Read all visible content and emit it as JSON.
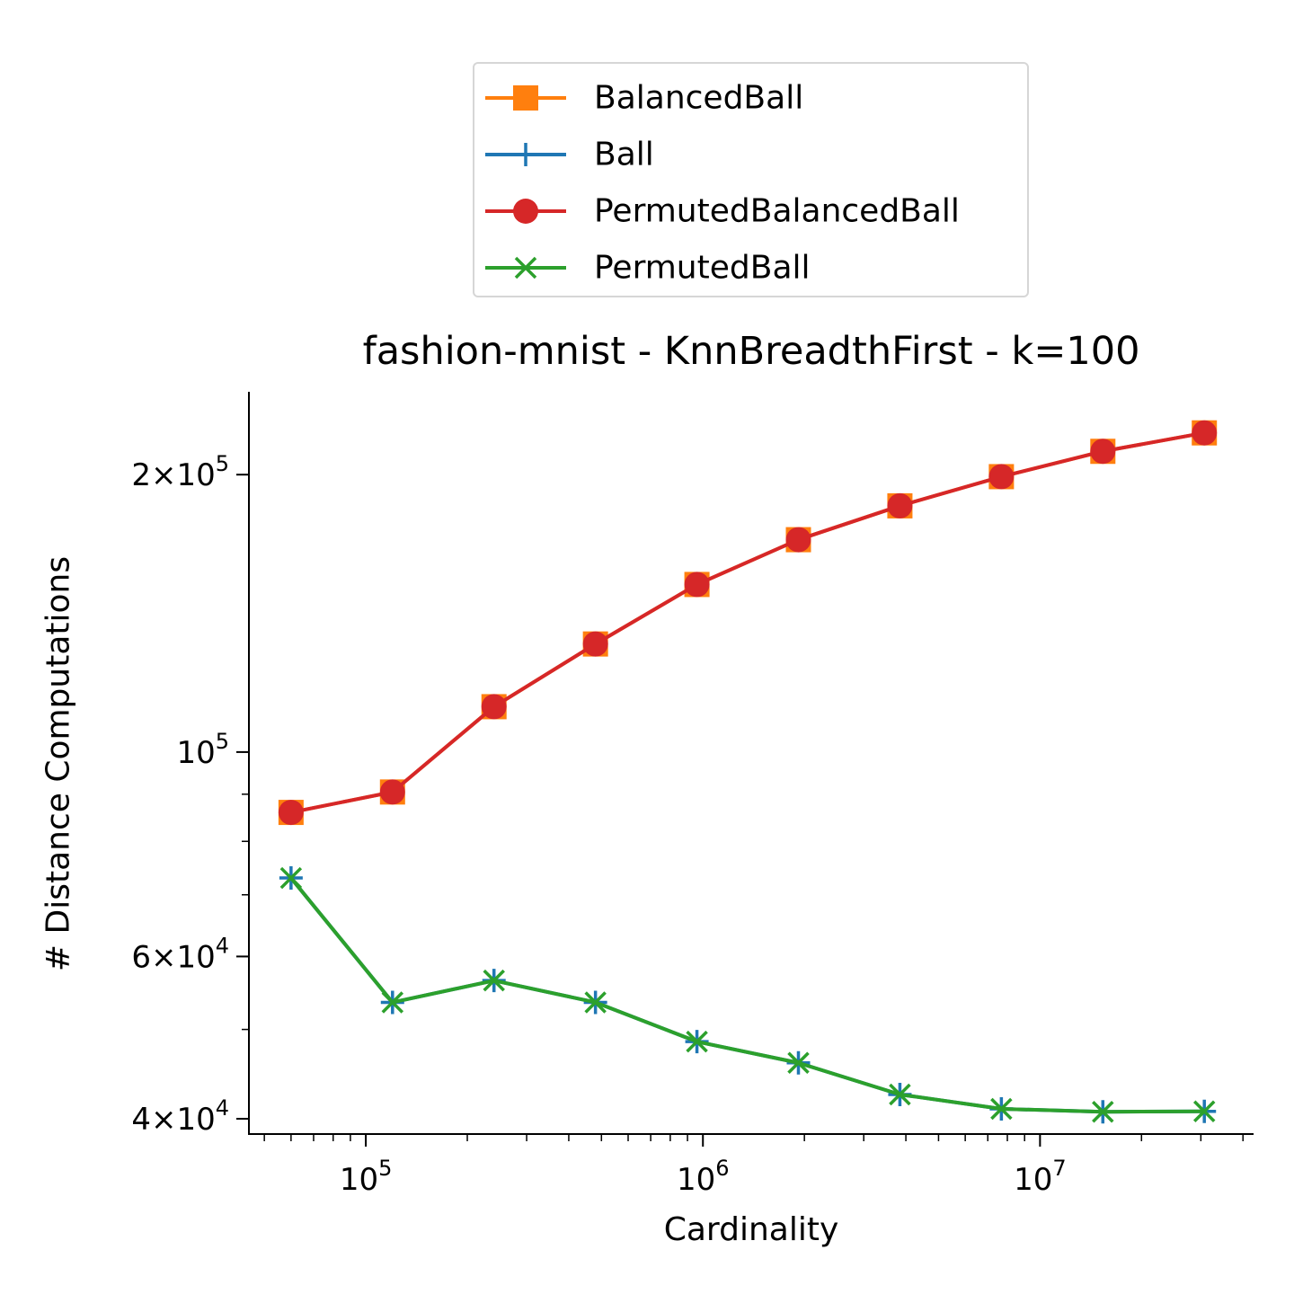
{
  "chart_data": {
    "type": "line",
    "title": "fashion-mnist - KnnBreadthFirst - k=100",
    "xlabel": "Cardinality",
    "ylabel": "# Distance Computations",
    "xscale": "log",
    "yscale": "log",
    "xlim": [
      45000,
      43000000
    ],
    "ylim": [
      38500,
      246000
    ],
    "xticks": [
      {
        "value": 100000,
        "base": "10",
        "exp": "5"
      },
      {
        "value": 1000000,
        "base": "10",
        "exp": "6"
      },
      {
        "value": 10000000,
        "base": "10",
        "exp": "7"
      }
    ],
    "yticks": [
      {
        "value": 40000,
        "base": "4×10",
        "exp": "4"
      },
      {
        "value": 60000,
        "base": "6×10",
        "exp": "4"
      },
      {
        "value": 100000,
        "base": "10",
        "exp": "5"
      },
      {
        "value": 200000,
        "base": "2×10",
        "exp": "5"
      }
    ],
    "grid": false,
    "legend_position": "top-center, above plot",
    "x": [
      60000,
      120000,
      240000,
      480000,
      960000,
      1920000,
      3840000,
      7680000,
      15360000,
      30720000
    ],
    "series": [
      {
        "name": "BalancedBall",
        "color": "#ff7f0e",
        "marker": "square",
        "values": [
          86000,
          90500,
          112000,
          131000,
          152000,
          170000,
          185000,
          199000,
          212000,
          222000
        ]
      },
      {
        "name": "Ball",
        "color": "#1f77b4",
        "marker": "plus",
        "values": [
          73000,
          53500,
          56500,
          53500,
          48500,
          46000,
          42500,
          41000,
          40700,
          40750
        ]
      },
      {
        "name": "PermutedBalancedBall",
        "color": "#d62728",
        "marker": "circle",
        "values": [
          86000,
          90500,
          112000,
          131000,
          152000,
          170000,
          185000,
          199000,
          212000,
          222000
        ]
      },
      {
        "name": "PermutedBall",
        "color": "#2ca02c",
        "marker": "x",
        "values": [
          73000,
          53500,
          56500,
          53500,
          48500,
          46000,
          42500,
          41000,
          40700,
          40750
        ]
      }
    ]
  }
}
